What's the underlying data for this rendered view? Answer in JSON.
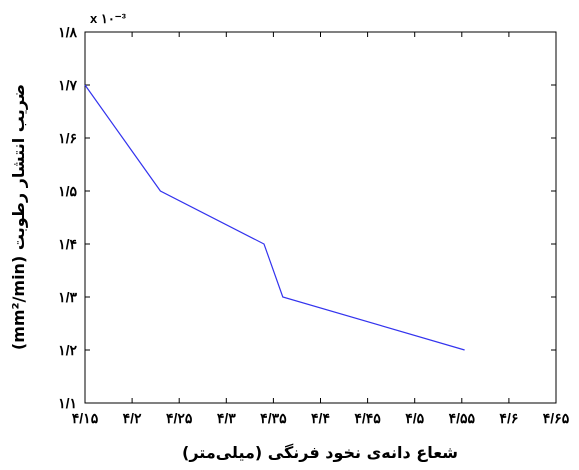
{
  "chart_data": {
    "type": "line",
    "title": "",
    "xlabel": "شعاع دانه‌ی نخود فرنگی (میلی‌متر)",
    "ylabel": "ضریب انتشار رطوبت (mm²/min)",
    "xlim": [
      4.15,
      4.65
    ],
    "ylim": [
      1.1,
      1.8
    ],
    "x_ticks": [
      4.15,
      4.2,
      4.25,
      4.3,
      4.35,
      4.4,
      4.45,
      4.5,
      4.55,
      4.6,
      4.65
    ],
    "x_tick_labels": [
      "۴/۱۵",
      "۴/۲",
      "۴/۲۵",
      "۴/۳",
      "۴/۳۵",
      "۴/۴",
      "۴/۴۵",
      "۴/۵",
      "۴/۵۵",
      "۴/۶",
      "۴/۶۵"
    ],
    "y_ticks": [
      1.1,
      1.2,
      1.3,
      1.4,
      1.5,
      1.6,
      1.7,
      1.8
    ],
    "y_tick_labels": [
      "۱/۱",
      "۱/۲",
      "۱/۳",
      "۱/۴",
      "۱/۵",
      "۱/۶",
      "۱/۷",
      "۱/۸"
    ],
    "y_exponent_label": "x ۱۰⁻³",
    "grid": false,
    "series": [
      {
        "color": "#3333ee",
        "x": [
          4.15,
          4.23,
          4.34,
          4.36,
          4.553
        ],
        "y": [
          1.7,
          1.5,
          1.4,
          1.3,
          1.2
        ]
      }
    ]
  }
}
